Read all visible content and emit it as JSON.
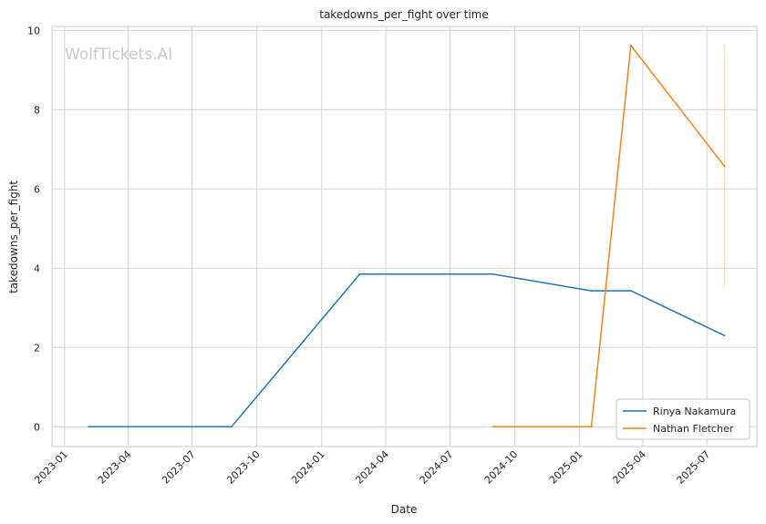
{
  "chart_data": {
    "type": "line",
    "title": "takedowns_per_fight over time",
    "xlabel": "Date",
    "ylabel": "takedowns_per_fight",
    "watermark": "WolfTickets.AI",
    "x_ticks": [
      "2023-01",
      "2023-04",
      "2023-07",
      "2023-10",
      "2024-01",
      "2024-04",
      "2024-07",
      "2024-10",
      "2025-01",
      "2025-04",
      "2025-07"
    ],
    "y_ticks": [
      0,
      2,
      4,
      6,
      8,
      10
    ],
    "xlim": [
      "2022-12-14",
      "2025-09-10"
    ],
    "ylim": [
      -0.5,
      10.1
    ],
    "grid": true,
    "legend_position": "lower-right",
    "series": [
      {
        "name": "Rinya Nakamura",
        "color": "#1f77b4",
        "points": [
          [
            "2023-02-04",
            0.0
          ],
          [
            "2023-08-26",
            0.0
          ],
          [
            "2024-02-24",
            3.85
          ],
          [
            "2024-08-31",
            3.85
          ],
          [
            "2025-01-18",
            3.43
          ],
          [
            "2025-03-15",
            3.43
          ],
          [
            "2025-07-26",
            2.3
          ]
        ]
      },
      {
        "name": "Nathan Fletcher",
        "color": "#ff7f0e",
        "points": [
          [
            "2024-08-31",
            0.0
          ],
          [
            "2025-01-18",
            0.0
          ],
          [
            "2025-03-15",
            9.62
          ],
          [
            "2025-07-26",
            6.57
          ]
        ],
        "error_bar": {
          "date": "2025-07-26",
          "low": 3.52,
          "high": 9.62
        }
      }
    ]
  }
}
